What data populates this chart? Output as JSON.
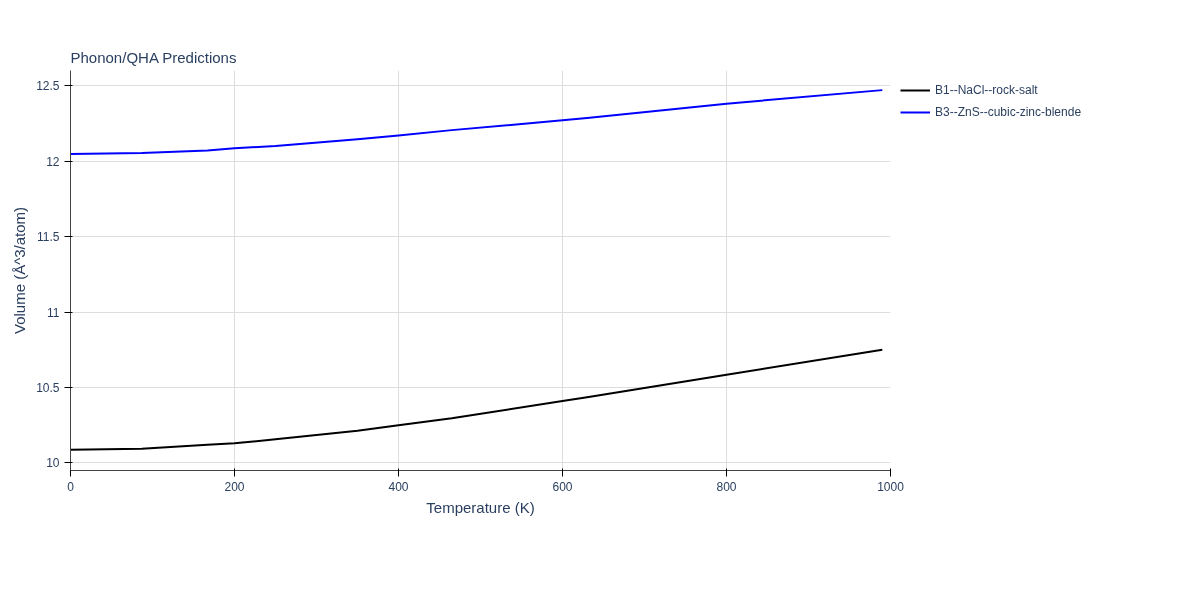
{
  "chart_data": {
    "type": "line",
    "title": "Phonon/QHA Predictions",
    "xlabel": "Temperature (K)",
    "ylabel": "Volume (Å^3/atom)",
    "xlim": [
      0,
      1000
    ],
    "ylim": [
      9.95,
      12.6
    ],
    "xticks": [
      0,
      200,
      400,
      600,
      800,
      1000
    ],
    "yticks": [
      10,
      10.5,
      11,
      11.5,
      12,
      12.5
    ],
    "grid": true,
    "legend": "top right",
    "line_style": "solid",
    "marker": "none",
    "x": [
      0,
      87,
      167,
      200,
      250,
      350,
      400,
      465,
      600,
      630,
      800,
      990
    ],
    "series": [
      {
        "name": "B1--NaCl--rock-salt",
        "color": "#000000",
        "values": [
          10.088,
          10.094,
          10.12,
          10.13,
          10.157,
          10.214,
          10.25,
          10.296,
          10.41,
          10.435,
          10.585,
          10.75
        ]
      },
      {
        "name": "B3--ZnS--cubic-zinc-blende",
        "color": "#0000ff",
        "values": [
          12.047,
          12.053,
          12.07,
          12.085,
          12.1,
          12.145,
          12.17,
          12.205,
          12.27,
          12.285,
          12.38,
          12.47
        ]
      }
    ]
  }
}
